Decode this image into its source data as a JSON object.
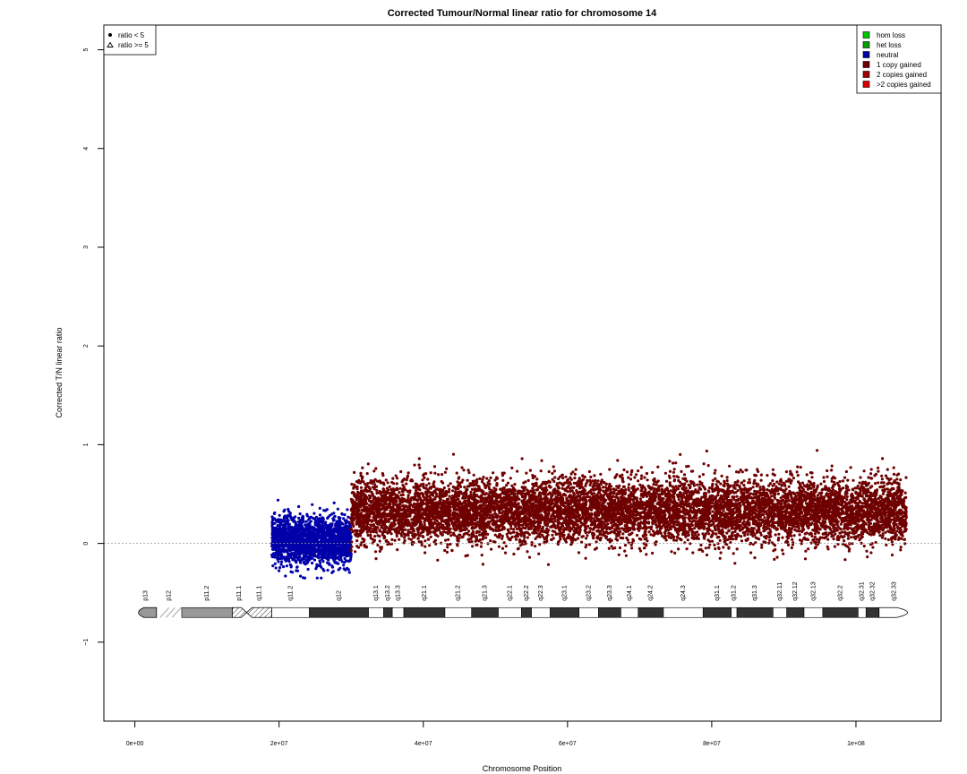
{
  "chart_data": {
    "type": "scatter",
    "title": "Corrected Tumour/Normal linear ratio for chromosome  14",
    "xlabel": "Chromosome Position",
    "ylabel": "Corrected T/N linear ratio",
    "xlim": [
      -4300000,
      111800000
    ],
    "ylim": [
      -1.8,
      5.25
    ],
    "x_ticks": [
      {
        "value": 0,
        "label": "0e+00"
      },
      {
        "value": 20000000,
        "label": "2e+07"
      },
      {
        "value": 40000000,
        "label": "4e+07"
      },
      {
        "value": 60000000,
        "label": "6e+07"
      },
      {
        "value": 80000000,
        "label": "8e+07"
      },
      {
        "value": 100000000,
        "label": "1e+08"
      }
    ],
    "y_ticks": [
      {
        "value": -1,
        "label": "−1"
      },
      {
        "value": 0,
        "label": "0"
      },
      {
        "value": 1,
        "label": "1"
      },
      {
        "value": 2,
        "label": "2"
      },
      {
        "value": 3,
        "label": "3"
      },
      {
        "value": 4,
        "label": "4"
      },
      {
        "value": 5,
        "label": "5"
      }
    ],
    "reference_line_y": 0,
    "shape_legend": {
      "placement": "top-left",
      "entries": [
        {
          "label": "ratio < 5",
          "symbol": "dot"
        },
        {
          "label": "ratio >= 5",
          "symbol": "triangle"
        }
      ]
    },
    "color_legend": {
      "placement": "top-right",
      "entries": [
        {
          "label": "hom loss",
          "color": "#00c800"
        },
        {
          "label": "het loss",
          "color": "#00a000"
        },
        {
          "label": "neutral",
          "color": "#0000aa"
        },
        {
          "label": "1 copy gained",
          "color": "#6e0000"
        },
        {
          "label": "2 copies gained",
          "color": "#a00000"
        },
        {
          "label": ">2 copies gained",
          "color": "#dc0000"
        }
      ]
    },
    "series": [
      {
        "state": "neutral",
        "color": "#0000aa",
        "x_range": [
          19000000,
          30000000
        ],
        "y_center": 0.03,
        "y_spread": 0.12,
        "y_min": -0.35,
        "y_max": 0.6,
        "approx_points": 1800
      },
      {
        "state": "1 copy gained",
        "color": "#6e0000",
        "x_range": [
          30000000,
          107000000
        ],
        "y_center": 0.33,
        "y_spread": 0.16,
        "y_min": -0.24,
        "y_max": 1.08,
        "approx_points": 9000
      }
    ],
    "ideogram": {
      "y_level": -0.7,
      "bands": [
        {
          "name": "p13",
          "start": 0,
          "end": 3000000,
          "stain": "stalk"
        },
        {
          "name": "p12",
          "start": 3000000,
          "end": 6500000,
          "stain": "gvar"
        },
        {
          "name": "p11.2",
          "start": 6500000,
          "end": 13500000,
          "stain": "gpos50"
        },
        {
          "name": "p11.1",
          "start": 13500000,
          "end": 15500000,
          "stain": "acen"
        },
        {
          "name": "q11.1",
          "start": 15500000,
          "end": 19000000,
          "stain": "acen"
        },
        {
          "name": "q11.2",
          "start": 19000000,
          "end": 24200000,
          "stain": "gneg"
        },
        {
          "name": "q12",
          "start": 24200000,
          "end": 32400000,
          "stain": "gpos100"
        },
        {
          "name": "q13.1",
          "start": 32400000,
          "end": 34500000,
          "stain": "gneg"
        },
        {
          "name": "q13.2",
          "start": 34500000,
          "end": 35700000,
          "stain": "gpos100"
        },
        {
          "name": "q13.3",
          "start": 35700000,
          "end": 37300000,
          "stain": "gneg"
        },
        {
          "name": "q21.1",
          "start": 37300000,
          "end": 43000000,
          "stain": "gpos100"
        },
        {
          "name": "q21.2",
          "start": 43000000,
          "end": 46700000,
          "stain": "gneg"
        },
        {
          "name": "q21.3",
          "start": 46700000,
          "end": 50400000,
          "stain": "gpos100"
        },
        {
          "name": "q22.1",
          "start": 50400000,
          "end": 53600000,
          "stain": "gneg"
        },
        {
          "name": "q22.2",
          "start": 53600000,
          "end": 55000000,
          "stain": "gpos100"
        },
        {
          "name": "q22.3",
          "start": 55000000,
          "end": 57600000,
          "stain": "gneg"
        },
        {
          "name": "q23.1",
          "start": 57600000,
          "end": 61600000,
          "stain": "gpos100"
        },
        {
          "name": "q23.2",
          "start": 61600000,
          "end": 64300000,
          "stain": "gneg"
        },
        {
          "name": "q23.3",
          "start": 64300000,
          "end": 67400000,
          "stain": "gpos100"
        },
        {
          "name": "q24.1",
          "start": 67400000,
          "end": 69800000,
          "stain": "gneg"
        },
        {
          "name": "q24.2",
          "start": 69800000,
          "end": 73300000,
          "stain": "gpos100"
        },
        {
          "name": "q24.3",
          "start": 73300000,
          "end": 78800000,
          "stain": "gneg"
        },
        {
          "name": "q31.1",
          "start": 78800000,
          "end": 82700000,
          "stain": "gpos100"
        },
        {
          "name": "q31.2",
          "start": 82700000,
          "end": 83500000,
          "stain": "gneg"
        },
        {
          "name": "q31.3",
          "start": 83500000,
          "end": 88500000,
          "stain": "gpos100"
        },
        {
          "name": "q32.11",
          "start": 88500000,
          "end": 90400000,
          "stain": "gneg"
        },
        {
          "name": "q32.12",
          "start": 90400000,
          "end": 92800000,
          "stain": "gpos100"
        },
        {
          "name": "q32.13",
          "start": 92800000,
          "end": 95400000,
          "stain": "gneg"
        },
        {
          "name": "q32.2",
          "start": 95400000,
          "end": 100300000,
          "stain": "gpos100"
        },
        {
          "name": "q32.31",
          "start": 100300000,
          "end": 101400000,
          "stain": "gneg"
        },
        {
          "name": "q32.32",
          "start": 101400000,
          "end": 103200000,
          "stain": "gpos100"
        },
        {
          "name": "q32.33",
          "start": 103200000,
          "end": 107400000,
          "stain": "gneg"
        }
      ]
    }
  }
}
